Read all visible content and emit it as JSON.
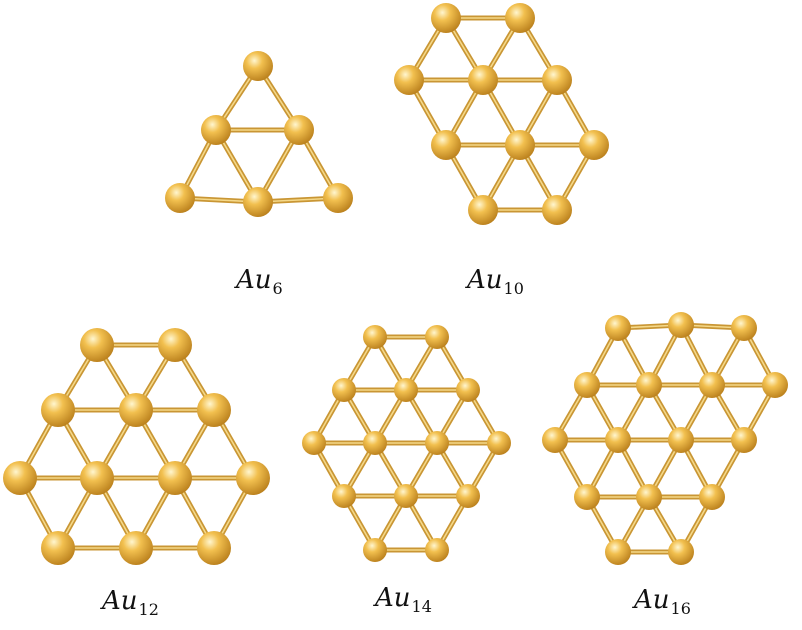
{
  "colors": {
    "atom_highlight": "#fff6cf",
    "atom_mid": "#f2c04f",
    "atom_shadow": "#b57a18",
    "bond_dark": "#c99634",
    "bond_light": "#f5d98a"
  },
  "clusters": [
    {
      "id": "au6",
      "element": "Au",
      "subscript": "6",
      "atom_count": 6
    },
    {
      "id": "au10",
      "element": "Au",
      "subscript": "10",
      "atom_count": 10
    },
    {
      "id": "au12",
      "element": "Au",
      "subscript": "12",
      "atom_count": 12
    },
    {
      "id": "au14",
      "element": "Au",
      "subscript": "14",
      "atom_count": 14
    },
    {
      "id": "au16",
      "element": "Au",
      "subscript": "16",
      "atom_count": 16
    }
  ]
}
